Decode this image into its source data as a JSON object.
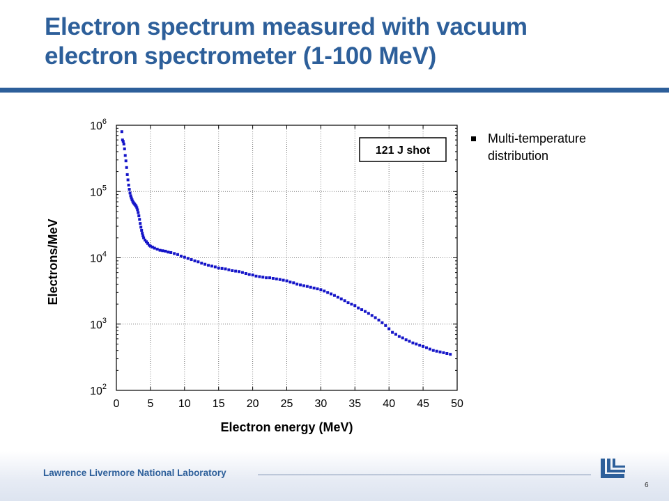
{
  "slide": {
    "title": "Electron spectrum measured with vacuum\nelectron spectrometer (1-100 MeV)",
    "bullet": "Multi-temperature distribution",
    "footer_lab": "Lawrence Livermore National Laboratory",
    "page_number": "6",
    "colors": {
      "title": "#2d5f9a",
      "marker": "#1414c8"
    }
  },
  "chart_data": {
    "type": "scatter",
    "xlabel": "Electron energy (MeV)",
    "ylabel": "Electrons/MeV",
    "xlim": [
      0,
      50
    ],
    "ylim": [
      100,
      1000000
    ],
    "y_scale": "log",
    "x_ticks": [
      "0",
      "5",
      "10",
      "15",
      "20",
      "25",
      "30",
      "35",
      "40",
      "45",
      "50"
    ],
    "y_ticks": [
      {
        "base": "10",
        "exp": "2"
      },
      {
        "base": "10",
        "exp": "3"
      },
      {
        "base": "10",
        "exp": "4"
      },
      {
        "base": "10",
        "exp": "5"
      },
      {
        "base": "10",
        "exp": "6"
      }
    ],
    "grid": true,
    "annotation": "121 J shot",
    "series": [
      {
        "points": [
          [
            0.8,
            800000
          ],
          [
            0.9,
            600000
          ],
          [
            1.0,
            570000
          ],
          [
            1.1,
            520000
          ],
          [
            1.2,
            440000
          ],
          [
            1.3,
            350000
          ],
          [
            1.4,
            290000
          ],
          [
            1.5,
            230000
          ],
          [
            1.6,
            180000
          ],
          [
            1.7,
            150000
          ],
          [
            1.8,
            125000
          ],
          [
            1.9,
            108000
          ],
          [
            2.0,
            95000
          ],
          [
            2.1,
            86000
          ],
          [
            2.2,
            80000
          ],
          [
            2.3,
            75000
          ],
          [
            2.4,
            71000
          ],
          [
            2.5,
            68000
          ],
          [
            2.6,
            66000
          ],
          [
            2.7,
            64000
          ],
          [
            2.8,
            62000
          ],
          [
            2.9,
            60000
          ],
          [
            3.0,
            57000
          ],
          [
            3.1,
            53000
          ],
          [
            3.2,
            48000
          ],
          [
            3.3,
            43000
          ],
          [
            3.4,
            38000
          ],
          [
            3.5,
            33000
          ],
          [
            3.6,
            29000
          ],
          [
            3.7,
            26000
          ],
          [
            3.8,
            23500
          ],
          [
            3.9,
            21500
          ],
          [
            4.0,
            20000
          ],
          [
            4.2,
            18500
          ],
          [
            4.4,
            17500
          ],
          [
            4.6,
            16500
          ],
          [
            4.8,
            15500
          ],
          [
            5.0,
            15000
          ],
          [
            5.3,
            14500
          ],
          [
            5.6,
            14000
          ],
          [
            6.0,
            13500
          ],
          [
            6.4,
            13000
          ],
          [
            6.8,
            12800
          ],
          [
            7.2,
            12600
          ],
          [
            7.6,
            12200
          ],
          [
            8.0,
            12000
          ],
          [
            8.5,
            11600
          ],
          [
            9.0,
            11200
          ],
          [
            9.5,
            10600
          ],
          [
            10.0,
            10200
          ],
          [
            10.5,
            9800
          ],
          [
            11.0,
            9400
          ],
          [
            11.5,
            9000
          ],
          [
            12.0,
            8700
          ],
          [
            12.5,
            8300
          ],
          [
            13.0,
            8000
          ],
          [
            13.5,
            7700
          ],
          [
            14.0,
            7500
          ],
          [
            14.5,
            7300
          ],
          [
            15.0,
            7000
          ],
          [
            15.5,
            6900
          ],
          [
            16.0,
            6800
          ],
          [
            16.5,
            6600
          ],
          [
            17.0,
            6400
          ],
          [
            17.5,
            6300
          ],
          [
            18.0,
            6200
          ],
          [
            18.5,
            6000
          ],
          [
            19.0,
            5800
          ],
          [
            19.5,
            5600
          ],
          [
            20.0,
            5500
          ],
          [
            20.5,
            5300
          ],
          [
            21.0,
            5200
          ],
          [
            21.5,
            5100
          ],
          [
            22.0,
            5000
          ],
          [
            22.5,
            5000
          ],
          [
            23.0,
            4900
          ],
          [
            23.5,
            4800
          ],
          [
            24.0,
            4700
          ],
          [
            24.5,
            4600
          ],
          [
            25.0,
            4500
          ],
          [
            25.5,
            4300
          ],
          [
            26.0,
            4200
          ],
          [
            26.5,
            4000
          ],
          [
            27.0,
            3900
          ],
          [
            27.5,
            3800
          ],
          [
            28.0,
            3700
          ],
          [
            28.5,
            3600
          ],
          [
            29.0,
            3500
          ],
          [
            29.5,
            3400
          ],
          [
            30.0,
            3300
          ],
          [
            30.5,
            3150
          ],
          [
            31.0,
            3000
          ],
          [
            31.5,
            2850
          ],
          [
            32.0,
            2700
          ],
          [
            32.5,
            2550
          ],
          [
            33.0,
            2400
          ],
          [
            33.5,
            2250
          ],
          [
            34.0,
            2100
          ],
          [
            34.5,
            2000
          ],
          [
            35.0,
            1900
          ],
          [
            35.5,
            1750
          ],
          [
            36.0,
            1650
          ],
          [
            36.5,
            1550
          ],
          [
            37.0,
            1450
          ],
          [
            37.5,
            1350
          ],
          [
            38.0,
            1250
          ],
          [
            38.5,
            1150
          ],
          [
            39.0,
            1050
          ],
          [
            39.5,
            950
          ],
          [
            40.0,
            850
          ],
          [
            40.5,
            750
          ],
          [
            41.0,
            700
          ],
          [
            41.5,
            650
          ],
          [
            42.0,
            620
          ],
          [
            42.5,
            580
          ],
          [
            43.0,
            550
          ],
          [
            43.5,
            520
          ],
          [
            44.0,
            500
          ],
          [
            44.5,
            480
          ],
          [
            45.0,
            460
          ],
          [
            45.5,
            440
          ],
          [
            46.0,
            420
          ],
          [
            46.5,
            400
          ],
          [
            47.0,
            390
          ],
          [
            47.5,
            380
          ],
          [
            48.0,
            370
          ],
          [
            48.5,
            360
          ],
          [
            49.0,
            350
          ]
        ]
      }
    ]
  }
}
